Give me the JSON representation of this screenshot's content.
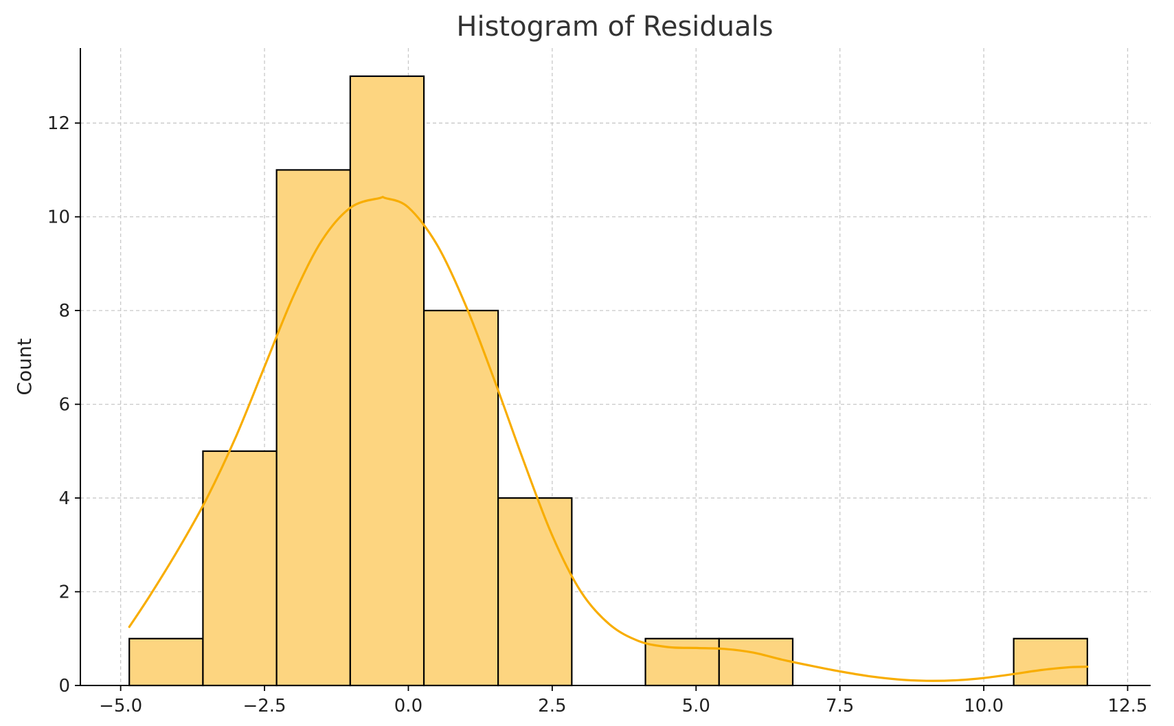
{
  "chart_data": {
    "type": "bar",
    "subtype": "histogram",
    "title": "Histogram of Residuals",
    "xlabel": "",
    "ylabel": "Count",
    "xlim": [
      -5.7,
      12.9
    ],
    "ylim": [
      0,
      13.6
    ],
    "x_ticks": [
      -5.0,
      -2.5,
      0.0,
      2.5,
      5.0,
      7.5,
      10.0,
      12.5
    ],
    "x_tick_labels": [
      "−5.0",
      "−2.5",
      "0.0",
      "2.5",
      "5.0",
      "7.5",
      "10.0",
      "12.5"
    ],
    "y_ticks": [
      0,
      2,
      4,
      6,
      8,
      10,
      12
    ],
    "y_tick_labels": [
      "0",
      "2",
      "4",
      "6",
      "8",
      "10",
      "12"
    ],
    "grid": true,
    "bin_edges": [
      -4.85,
      -3.57,
      -2.29,
      -1.01,
      0.27,
      1.56,
      2.84,
      4.12,
      5.4,
      6.68,
      7.96,
      9.24,
      10.52,
      11.8
    ],
    "counts": [
      1,
      5,
      11,
      13,
      8,
      4,
      0,
      1,
      1,
      0,
      0,
      0,
      1
    ],
    "kde": {
      "x": [
        -4.85,
        -4.5,
        -4.0,
        -3.5,
        -3.0,
        -2.5,
        -2.0,
        -1.5,
        -1.0,
        -0.5,
        -0.4,
        0.0,
        0.5,
        1.0,
        1.5,
        2.0,
        2.5,
        3.0,
        3.5,
        4.0,
        4.5,
        5.0,
        5.5,
        6.0,
        6.5,
        7.0,
        7.5,
        8.0,
        8.5,
        9.0,
        9.5,
        10.0,
        10.5,
        11.0,
        11.5,
        11.8
      ],
      "y": [
        1.25,
        1.9,
        2.9,
        4.0,
        5.3,
        6.8,
        8.3,
        9.5,
        10.2,
        10.4,
        10.4,
        10.2,
        9.4,
        8.1,
        6.5,
        4.8,
        3.2,
        2.0,
        1.3,
        0.95,
        0.82,
        0.8,
        0.78,
        0.7,
        0.55,
        0.42,
        0.3,
        0.2,
        0.13,
        0.1,
        0.11,
        0.16,
        0.24,
        0.33,
        0.39,
        0.4
      ]
    },
    "colors": {
      "bar_fill": "#fdd580",
      "bar_edge": "#000000",
      "kde_line": "#f8ad00",
      "grid": "#c8c8c8",
      "axis": "#000000"
    }
  }
}
